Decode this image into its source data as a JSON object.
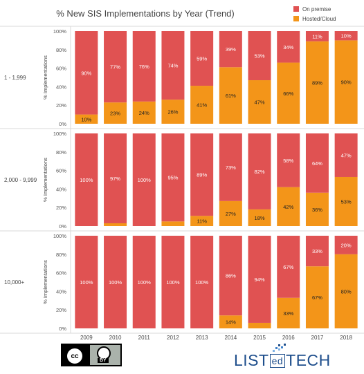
{
  "chart_data": {
    "type": "bar",
    "stacked": true,
    "title": "% New SIS Implementations by Year (Trend)",
    "categories": [
      "2009",
      "2010",
      "2011",
      "2012",
      "2013",
      "2014",
      "2015",
      "2016",
      "2017",
      "2018"
    ],
    "ylabel": "% Implementations",
    "ylim": [
      0,
      100
    ],
    "yticks": [
      "0%",
      "20%",
      "40%",
      "60%",
      "80%",
      "100%"
    ],
    "legend_position": "top-right",
    "series_meta": [
      {
        "name": "On premise",
        "color": "#e05252"
      },
      {
        "name": "Hosted/Cloud",
        "color": "#f39519"
      }
    ],
    "panels": [
      {
        "label": "1 - 1,999",
        "on_premise": [
          90,
          77,
          76,
          74,
          59,
          39,
          53,
          34,
          11,
          10
        ],
        "hosted_cloud": [
          10,
          23,
          24,
          26,
          41,
          61,
          47,
          66,
          89,
          90
        ],
        "on_premise_labels": [
          "90%",
          "77%",
          "76%",
          "74%",
          "59%",
          "39%",
          "53%",
          "34%",
          "11%",
          "10%"
        ],
        "hosted_cloud_labels": [
          "10%",
          "23%",
          "24%",
          "26%",
          "41%",
          "61%",
          "47%",
          "66%",
          "89%",
          "90%"
        ]
      },
      {
        "label": "2,000 - 9,999",
        "on_premise": [
          100,
          97,
          100,
          95,
          89,
          73,
          82,
          58,
          64,
          47
        ],
        "hosted_cloud": [
          0,
          3,
          0,
          5,
          11,
          27,
          18,
          42,
          36,
          53
        ],
        "on_premise_labels": [
          "100%",
          "97%",
          "100%",
          "95%",
          "89%",
          "73%",
          "82%",
          "58%",
          "64%",
          "47%"
        ],
        "hosted_cloud_labels": [
          "",
          "",
          "",
          "",
          "11%",
          "27%",
          "18%",
          "42%",
          "36%",
          "53%"
        ]
      },
      {
        "label": "10,000+",
        "on_premise": [
          100,
          100,
          100,
          100,
          100,
          86,
          94,
          67,
          33,
          20
        ],
        "hosted_cloud": [
          0,
          0,
          0,
          0,
          0,
          14,
          6,
          33,
          67,
          80
        ],
        "on_premise_labels": [
          "100%",
          "100%",
          "100%",
          "100%",
          "100%",
          "86%",
          "94%",
          "67%",
          "33%",
          "20%"
        ],
        "hosted_cloud_labels": [
          "",
          "",
          "",
          "",
          "",
          "14%",
          "",
          "33%",
          "67%",
          "80%"
        ]
      }
    ]
  },
  "license": {
    "cc": "cc",
    "by": "BY"
  },
  "brand": {
    "part1": "LIST",
    "part2": "ed",
    "part3": "TECH"
  }
}
